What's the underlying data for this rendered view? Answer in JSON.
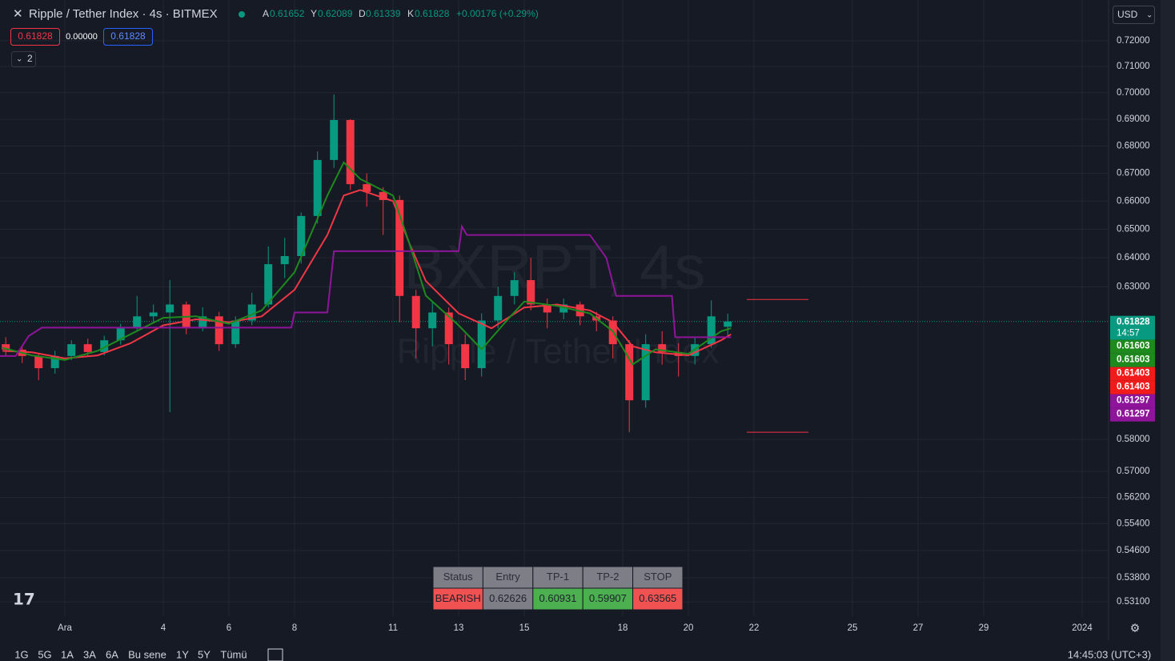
{
  "header": {
    "symbol": "Ripple / Tether Index · 4s · BITMEX",
    "ohlc": [
      {
        "label": "A",
        "value": "0.61652"
      },
      {
        "label": "Y",
        "value": "0.62089"
      },
      {
        "label": "D",
        "value": "0.61339"
      },
      {
        "label": "K",
        "value": "0.61828"
      }
    ],
    "change": "+0.00176 (+0.29%)",
    "badges": [
      "0.61828",
      "0.00000",
      "0.61828"
    ],
    "indicator_count": "2",
    "currency": "USD"
  },
  "chart_data": {
    "type": "candlestick",
    "log_scale": true,
    "grid": true,
    "watermark": [
      "BXRPT, 4s",
      "Ripple / Tether Index"
    ],
    "xlim": [
      -0.976,
      32.805
    ],
    "ylim": [
      0.5269,
      0.7361
    ],
    "xticks": [
      {
        "value": 1,
        "label": "Ara"
      },
      4,
      6,
      8,
      11,
      13,
      15,
      18,
      20,
      22,
      25,
      27,
      29,
      {
        "value": 32,
        "label": "2024"
      }
    ],
    "yticks": [
      {
        "value": 0.72,
        "label": "0.72000"
      },
      {
        "value": 0.71,
        "label": "0.71000"
      },
      {
        "value": 0.7,
        "label": "0.70000"
      },
      {
        "value": 0.69,
        "label": "0.69000"
      },
      {
        "value": 0.68,
        "label": "0.68000"
      },
      {
        "value": 0.67,
        "label": "0.67000"
      },
      {
        "value": 0.66,
        "label": "0.66000"
      },
      {
        "value": 0.65,
        "label": "0.65000"
      },
      {
        "value": 0.64,
        "label": "0.64000"
      },
      {
        "value": 0.63,
        "label": "0.63000"
      },
      {
        "value": 0.58,
        "label": "0.58000"
      },
      {
        "value": 0.57,
        "label": "0.57000"
      },
      {
        "value": 0.562,
        "label": "0.56200"
      },
      {
        "value": 0.554,
        "label": "0.55400"
      },
      {
        "value": 0.546,
        "label": "0.54600"
      },
      {
        "value": 0.538,
        "label": "0.53800"
      },
      {
        "value": 0.531,
        "label": "0.53100"
      }
    ],
    "up_color": "#089981",
    "down_color": "#f23645",
    "x": [
      -0.8,
      -0.3,
      0.2,
      0.7,
      1.2,
      1.7,
      2.2,
      2.7,
      3.2,
      3.7,
      4.2,
      4.7,
      5.2,
      5.7,
      6.2,
      6.7,
      7.2,
      7.7,
      8.2,
      8.7,
      9.2,
      9.7,
      10.2,
      10.7,
      11.2,
      11.7,
      12.2,
      12.7,
      13.2,
      13.7,
      14.2,
      14.7,
      15.2,
      15.7,
      16.2,
      16.7,
      17.2,
      17.7,
      18.2,
      18.7,
      19.2,
      19.7,
      20.2,
      20.7,
      21.2
    ],
    "open": [
      0.6107,
      0.6089,
      0.6068,
      0.6028,
      0.6068,
      0.6107,
      0.6081,
      0.612,
      0.616,
      0.62,
      0.6213,
      0.624,
      0.616,
      0.62,
      0.6107,
      0.6186,
      0.624,
      0.6378,
      0.6406,
      0.6547,
      0.6749,
      0.6897,
      0.6661,
      0.6633,
      0.6604,
      0.6269,
      0.616,
      0.6213,
      0.6107,
      0.6028,
      0.6186,
      0.6269,
      0.6323,
      0.624,
      0.6213,
      0.624,
      0.62,
      0.6186,
      0.6107,
      0.5924,
      0.6107,
      0.6081,
      0.6068,
      0.6107,
      0.6165
    ],
    "high": [
      0.613,
      0.61,
      0.6075,
      0.6085,
      0.612,
      0.6125,
      0.6135,
      0.6175,
      0.6269,
      0.624,
      0.6323,
      0.625,
      0.623,
      0.6215,
      0.62,
      0.628,
      0.644,
      0.647,
      0.656,
      0.678,
      0.6993,
      0.69,
      0.67,
      0.665,
      0.662,
      0.629,
      0.625,
      0.623,
      0.614,
      0.621,
      0.63,
      0.635,
      0.64,
      0.626,
      0.626,
      0.625,
      0.6215,
      0.62,
      0.612,
      0.614,
      0.615,
      0.611,
      0.613,
      0.6254,
      0.6209
    ],
    "low": [
      0.607,
      0.6045,
      0.5989,
      0.601,
      0.6055,
      0.6065,
      0.607,
      0.6105,
      0.615,
      0.618,
      0.5886,
      0.614,
      0.615,
      0.6085,
      0.6095,
      0.617,
      0.623,
      0.633,
      0.638,
      0.652,
      0.672,
      0.664,
      0.658,
      0.648,
      0.618,
      0.606,
      0.61,
      0.604,
      0.5989,
      0.6001,
      0.616,
      0.624,
      0.622,
      0.616,
      0.619,
      0.617,
      0.615,
      0.606,
      0.5822,
      0.59,
      0.604,
      0.6001,
      0.604,
      0.6095,
      0.6134
    ],
    "close": [
      0.6089,
      0.6068,
      0.6028,
      0.6068,
      0.6107,
      0.6081,
      0.612,
      0.616,
      0.62,
      0.6213,
      0.624,
      0.616,
      0.62,
      0.6107,
      0.6186,
      0.624,
      0.6378,
      0.6406,
      0.6547,
      0.6749,
      0.6897,
      0.6661,
      0.6633,
      0.6604,
      0.6269,
      0.616,
      0.6213,
      0.6107,
      0.6028,
      0.6186,
      0.6269,
      0.6323,
      0.624,
      0.6213,
      0.624,
      0.62,
      0.6186,
      0.6107,
      0.5924,
      0.6107,
      0.6081,
      0.6068,
      0.6107,
      0.62,
      0.61828
    ],
    "lines": [
      {
        "color": "#f23645",
        "x": [
          -0.9,
          0,
          1,
          2,
          3,
          4,
          5,
          6,
          7,
          8,
          9,
          9.5,
          10,
          11,
          11.5,
          12,
          13,
          14,
          15,
          16,
          17,
          17.7,
          18.3,
          19,
          20,
          21,
          21.3
        ],
        "values": [
          0.6085,
          0.608,
          0.606,
          0.607,
          0.611,
          0.617,
          0.619,
          0.618,
          0.62,
          0.629,
          0.648,
          0.662,
          0.664,
          0.66,
          0.645,
          0.632,
          0.621,
          0.616,
          0.623,
          0.624,
          0.622,
          0.618,
          0.61,
          0.608,
          0.607,
          0.612,
          0.614
        ]
      },
      {
        "color": "#1e8a1e",
        "x": [
          -0.9,
          0,
          1,
          2,
          3,
          4,
          5,
          6,
          7,
          8,
          9,
          9.5,
          10,
          11,
          11.5,
          12,
          13,
          13.7,
          14.5,
          15,
          16,
          17,
          17.7,
          18.3,
          19,
          20,
          21,
          21.3
        ],
        "values": [
          0.6095,
          0.607,
          0.6055,
          0.6085,
          0.614,
          0.6195,
          0.62,
          0.6175,
          0.622,
          0.635,
          0.662,
          0.674,
          0.668,
          0.662,
          0.645,
          0.627,
          0.617,
          0.609,
          0.619,
          0.625,
          0.6235,
          0.621,
          0.615,
          0.604,
          0.609,
          0.6075,
          0.615,
          0.616
        ]
      },
      {
        "color": "#8e1599",
        "x": [
          -1,
          -0.5,
          -0.1,
          0.3,
          7.9,
          8,
          9,
          9.2,
          13,
          13.1,
          13.25,
          17,
          17.5,
          17.8,
          19.5,
          19.6,
          21.3
        ],
        "values": [
          0.6068,
          0.6068,
          0.6134,
          0.6162,
          0.6162,
          0.6213,
          0.6213,
          0.6423,
          0.6423,
          0.651,
          0.648,
          0.648,
          0.64,
          0.6269,
          0.6269,
          0.613,
          0.613
        ]
      }
    ],
    "target_lines": [
      0.6257,
      0.5822
    ],
    "last_price": 0.61828,
    "countdown": "14:57",
    "price_badges": [
      {
        "value": 0.61603,
        "color": "#1e8a1e"
      },
      {
        "value": 0.61603,
        "color": "#1e8a1e"
      },
      {
        "value": 0.61403,
        "color": "#f21b1b"
      },
      {
        "value": 0.61403,
        "color": "#f21b1b"
      },
      {
        "value": 0.61297,
        "color": "#8e1599"
      },
      {
        "value": 0.61297,
        "color": "#8e1599"
      }
    ]
  },
  "signal_table": {
    "headers": [
      "Status",
      "Entry",
      "TP-1",
      "TP-2",
      "STOP"
    ],
    "row": [
      "BEARISH",
      "0.62626",
      "0.60931",
      "0.59907",
      "0.63565"
    ]
  },
  "toolbar": {
    "ranges": [
      "1G",
      "5G",
      "1A",
      "3A",
      "6A",
      "Bu sene",
      "1Y",
      "5Y",
      "Tümü"
    ],
    "clock": "14:45:03 (UTC+3)"
  }
}
